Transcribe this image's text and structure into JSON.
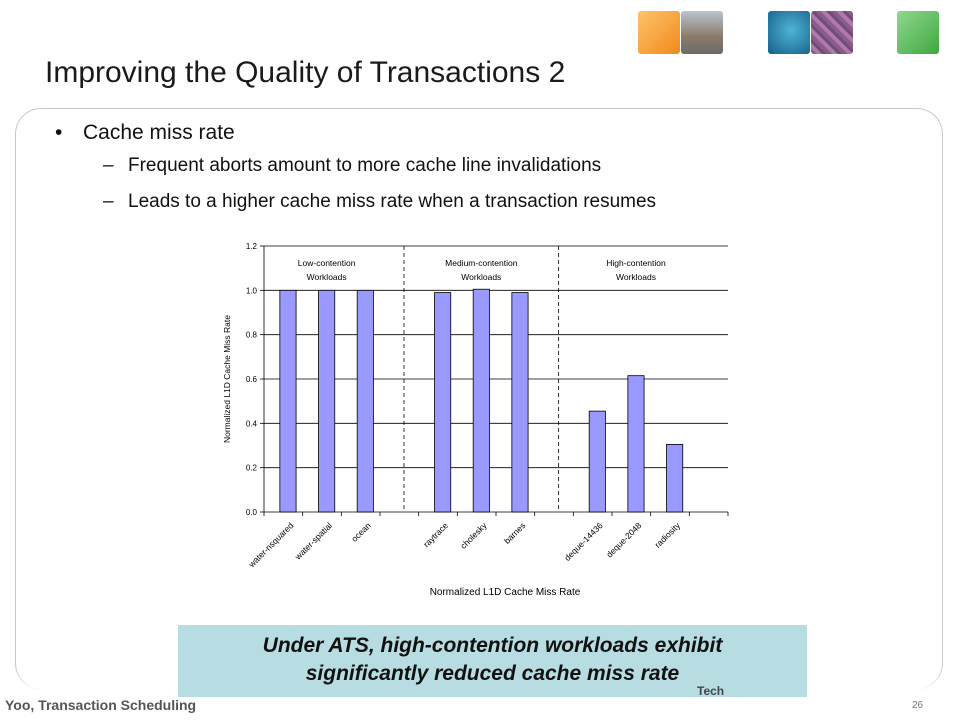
{
  "slide": {
    "title": "Improving the Quality of Transactions 2",
    "bullet": "Cache miss rate",
    "subbullets": [
      "Frequent aborts amount to more cache line invalidations",
      "Leads to a higher cache miss rate when a transaction resumes"
    ],
    "bullet_glyph": "•",
    "dash_glyph": "–",
    "callout_line1": "Under ATS, high-contention workloads exhibit",
    "callout_line2": "significantly reduced cache miss rate",
    "footer": "Yoo, Transaction Scheduling",
    "page_number": "26",
    "logo_text": "Tech"
  },
  "colors": {
    "bar_fill": "#9999ff",
    "bar_stroke": "#000000",
    "callout_bg": "#b7dde3",
    "tiles": [
      "#f5a032",
      "#8a8a8a",
      "#1e7fa8",
      "#7a5a8a",
      "#5cb85c"
    ]
  },
  "chart_data": {
    "type": "bar",
    "title": "Normalized L1D Cache Miss Rate",
    "xlabel": "",
    "ylabel": "Normalized L1D Cache Miss Rate",
    "ylim": [
      0,
      1.2
    ],
    "yticks": [
      "0.0",
      "0.2",
      "0.4",
      "0.6",
      "0.8",
      "1.0",
      "1.2"
    ],
    "categories": [
      "water-nsquared",
      "water-spatial",
      "ocean",
      "",
      "raytrace",
      "cholesky",
      "barnes",
      "",
      "deque-14436",
      "deque-2048",
      "radiosity"
    ],
    "values": [
      1.0,
      1.0,
      1.0,
      null,
      0.99,
      1.005,
      0.99,
      null,
      0.455,
      0.615,
      0.305
    ],
    "grid": true,
    "group_labels": [
      {
        "line1": "Low-contention",
        "line2": "Workloads"
      },
      {
        "line1": "Medium-contention",
        "line2": "Workloads"
      },
      {
        "line1": "High-contention",
        "line2": "Workloads"
      }
    ]
  }
}
